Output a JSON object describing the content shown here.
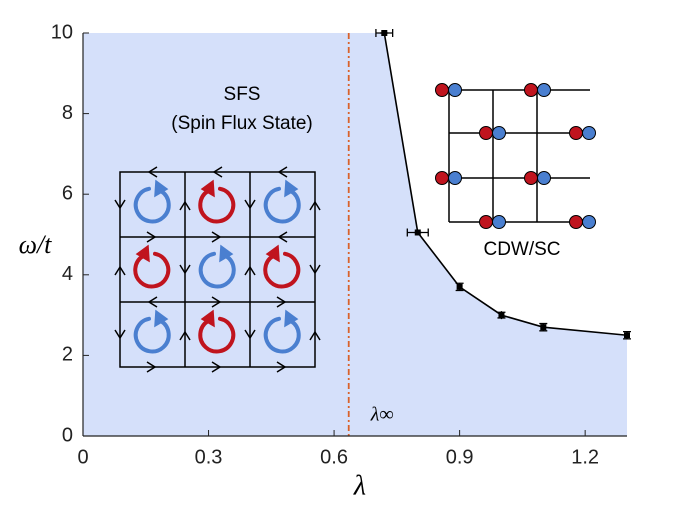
{
  "chart_data": {
    "type": "phase-diagram",
    "x_label": "λ",
    "y_label": "ω/t",
    "xlim": [
      0,
      1.3
    ],
    "ylim": [
      0,
      10
    ],
    "xticks": [
      0,
      0.3,
      0.6,
      0.9,
      1.2
    ],
    "yticks": [
      0,
      2,
      4,
      6,
      8,
      10
    ],
    "region_color": "#d5e0fa",
    "series": [
      {
        "color": "#000000",
        "x": [
          0.72,
          0.8,
          0.9,
          1.0,
          1.1,
          1.3
        ],
        "values": [
          10,
          5.05,
          3.7,
          3.0,
          2.7,
          2.5
        ],
        "x_errors": [
          0.02,
          0.025,
          0,
          0,
          0,
          0
        ],
        "y_errors": [
          0,
          0,
          0.09,
          0.07,
          0.09,
          0.09
        ]
      }
    ],
    "critical_line": {
      "x": 0.635,
      "label": "λ∞",
      "color": "#d9622b"
    },
    "annotations": [
      "SFS",
      "(Spin Flux State)",
      "CDW/SC"
    ]
  }
}
